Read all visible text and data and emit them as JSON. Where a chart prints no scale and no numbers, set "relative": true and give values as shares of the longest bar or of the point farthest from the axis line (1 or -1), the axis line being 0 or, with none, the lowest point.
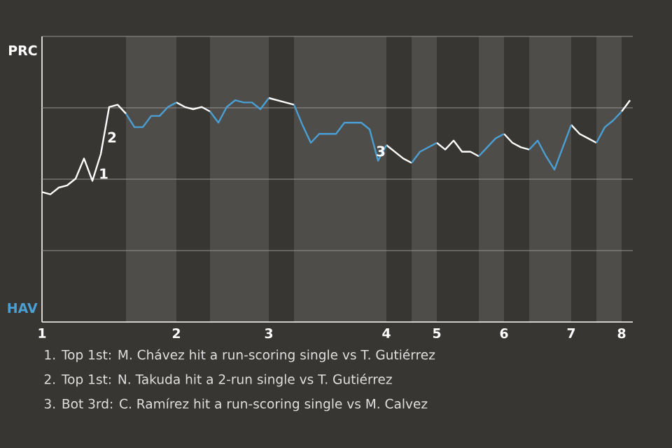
{
  "chart_data": {
    "type": "line",
    "relative": true,
    "grid": "y",
    "categories": [
      "1",
      null,
      null,
      null,
      null,
      null,
      null,
      null,
      null,
      null,
      null,
      null,
      null,
      null,
      null,
      null,
      "2",
      null,
      null,
      null,
      null,
      null,
      null,
      null,
      null,
      null,
      null,
      "3",
      null,
      null,
      null,
      null,
      null,
      null,
      null,
      null,
      null,
      null,
      null,
      null,
      null,
      "4",
      null,
      null,
      null,
      null,
      null,
      "5",
      null,
      null,
      null,
      null,
      null,
      null,
      null,
      "6",
      null,
      null,
      null,
      null,
      null,
      null,
      null,
      "7",
      null,
      null,
      null,
      null,
      null,
      "8",
      null
    ],
    "series": [
      {
        "name": "PRC",
        "color": "#ffffff",
        "values": [
          0.58,
          0.57,
          0.6,
          0.61,
          0.64,
          0.73,
          0.63,
          0.75,
          0.96,
          0.97,
          0.93,
          null,
          null,
          null,
          null,
          null,
          0.98,
          0.96,
          0.95,
          0.96,
          0.94,
          null,
          null,
          null,
          null,
          null,
          null,
          1.0,
          0.99,
          0.98,
          0.97,
          null,
          null,
          null,
          null,
          null,
          null,
          null,
          null,
          null,
          null,
          0.79,
          0.76,
          0.73,
          0.71,
          null,
          null,
          0.8,
          0.77,
          0.81,
          0.76,
          0.76,
          0.74,
          null,
          null,
          0.84,
          0.8,
          0.78,
          0.77,
          null,
          null,
          null,
          null,
          0.88,
          0.84,
          0.82,
          0.8,
          null,
          null,
          0.94,
          0.99
        ]
      },
      {
        "name": "HAV",
        "color": "#4a9fd4",
        "values": [
          null,
          null,
          null,
          null,
          null,
          null,
          null,
          null,
          null,
          null,
          0.93,
          0.87,
          0.87,
          0.92,
          0.92,
          0.96,
          0.98,
          null,
          null,
          null,
          0.94,
          0.89,
          0.96,
          0.99,
          0.98,
          0.98,
          0.95,
          1.0,
          null,
          null,
          0.97,
          0.88,
          0.8,
          0.84,
          0.84,
          0.84,
          0.89,
          0.89,
          0.89,
          0.86,
          0.72,
          0.79,
          null,
          null,
          0.71,
          0.76,
          0.78,
          0.8,
          null,
          null,
          null,
          null,
          0.74,
          0.78,
          0.82,
          0.84,
          null,
          null,
          0.77,
          0.81,
          0.74,
          0.68,
          0.78,
          0.88,
          null,
          null,
          0.8,
          0.87,
          0.9,
          0.94,
          null
        ]
      }
    ],
    "annotations": [
      "1",
      "2",
      "3",
      "1. Top 1st: M. Chávez hit a run-scoring single vs T. Gutiérrez",
      "2. Top 1st: N. Takuda hit a 2-run single vs T. Gutiérrez",
      "3. Bot 3rd: C. Ramírez hit a run-scoring single vs M. Calvez"
    ]
  }
}
